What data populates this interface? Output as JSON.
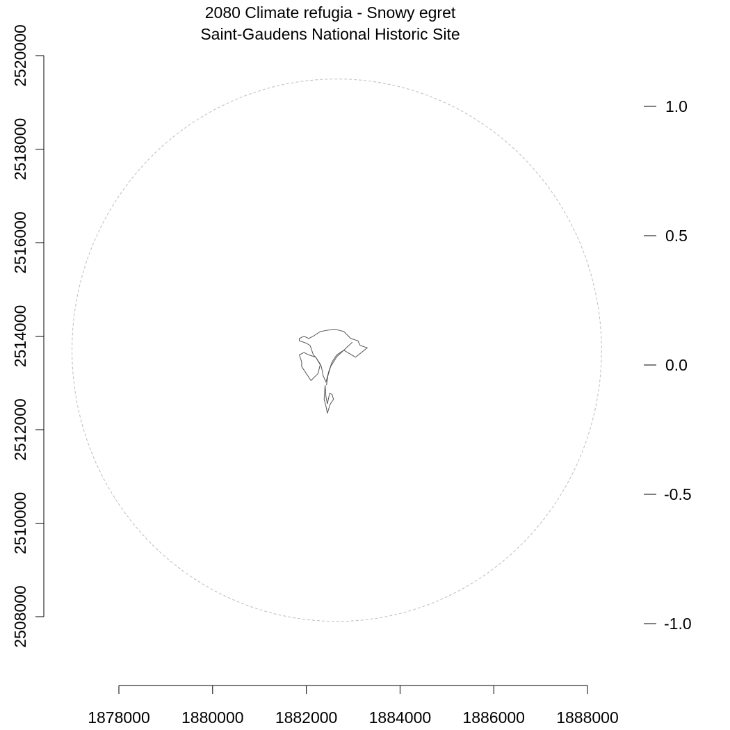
{
  "title": {
    "line1": "2080 Climate refugia - Snowy egret",
    "line2": "Saint-Gaudens National Historic Site"
  },
  "chart_data": {
    "type": "map",
    "x_axis": {
      "ticks": [
        1878000,
        1880000,
        1882000,
        1884000,
        1886000,
        1888000
      ],
      "labels": [
        "1878000",
        "1880000",
        "1882000",
        "1884000",
        "1886000",
        "1888000"
      ]
    },
    "y_axis": {
      "ticks": [
        2508000,
        2510000,
        2512000,
        2514000,
        2516000,
        2518000,
        2520000
      ],
      "labels": [
        "2508000",
        "2510000",
        "2512000",
        "2514000",
        "2516000",
        "2518000",
        "2520000"
      ]
    },
    "legend_scale": {
      "ticks": [
        1.0,
        0.5,
        0.0,
        -0.5,
        -1.0
      ],
      "labels": [
        "1.0",
        "0.5",
        "0.0",
        "-0.5",
        "-1.0"
      ]
    },
    "colors": {
      "buffer_circle": "#bdbdbd",
      "park_boundary": "#555555",
      "axis": "#000000"
    },
    "features": [
      {
        "name": "buffer",
        "kind": "circle",
        "stroke": "dashed",
        "center": [
          1882650,
          2513700
        ],
        "radius_x": 5650,
        "radius_y": 5800
      },
      {
        "name": "park-boundary-east",
        "kind": "polygon",
        "points": [
          [
            1882050,
            2513950
          ],
          [
            1882150,
            2514000
          ],
          [
            1882300,
            2514100
          ],
          [
            1882600,
            2514150
          ],
          [
            1882800,
            2514100
          ],
          [
            1882950,
            2513950
          ],
          [
            1883100,
            2513900
          ],
          [
            1883150,
            2513800
          ],
          [
            1883300,
            2513750
          ],
          [
            1883050,
            2513550
          ],
          [
            1882800,
            2513700
          ],
          [
            1882650,
            2513600
          ],
          [
            1882550,
            2513450
          ],
          [
            1882480,
            2513250
          ],
          [
            1882420,
            2513020
          ],
          [
            1882360,
            2513150
          ],
          [
            1882320,
            2513350
          ],
          [
            1882200,
            2513550
          ],
          [
            1882150,
            2513600
          ],
          [
            1882080,
            2513800
          ],
          [
            1882000,
            2513850
          ],
          [
            1881850,
            2513900
          ],
          [
            1881850,
            2513950
          ],
          [
            1881950,
            2514000
          ],
          [
            1882050,
            2513950
          ]
        ]
      },
      {
        "name": "park-boundary-west",
        "kind": "polygon",
        "points": [
          [
            1881850,
            2513600
          ],
          [
            1881900,
            2513450
          ],
          [
            1881900,
            2513350
          ],
          [
            1882100,
            2513050
          ],
          [
            1882250,
            2513200
          ],
          [
            1882300,
            2513400
          ],
          [
            1882200,
            2513550
          ],
          [
            1882050,
            2513600
          ],
          [
            1881950,
            2513650
          ],
          [
            1881850,
            2513600
          ]
        ]
      },
      {
        "name": "park-boundary-south",
        "kind": "polygon",
        "points": [
          [
            1882400,
            2512950
          ],
          [
            1882420,
            2512700
          ],
          [
            1882450,
            2512550
          ],
          [
            1882480,
            2512700
          ],
          [
            1882500,
            2512780
          ],
          [
            1882550,
            2512750
          ],
          [
            1882580,
            2512650
          ],
          [
            1882520,
            2512560
          ],
          [
            1882500,
            2512520
          ],
          [
            1882450,
            2512350
          ],
          [
            1882420,
            2512500
          ],
          [
            1882380,
            2512650
          ],
          [
            1882400,
            2512950
          ]
        ]
      },
      {
        "name": "river-channel",
        "kind": "line",
        "points": [
          [
            1882980,
            2513870
          ],
          [
            1882800,
            2513700
          ],
          [
            1882650,
            2513560
          ],
          [
            1882520,
            2513350
          ],
          [
            1882460,
            2513150
          ],
          [
            1882430,
            2512950
          ]
        ]
      }
    ]
  }
}
